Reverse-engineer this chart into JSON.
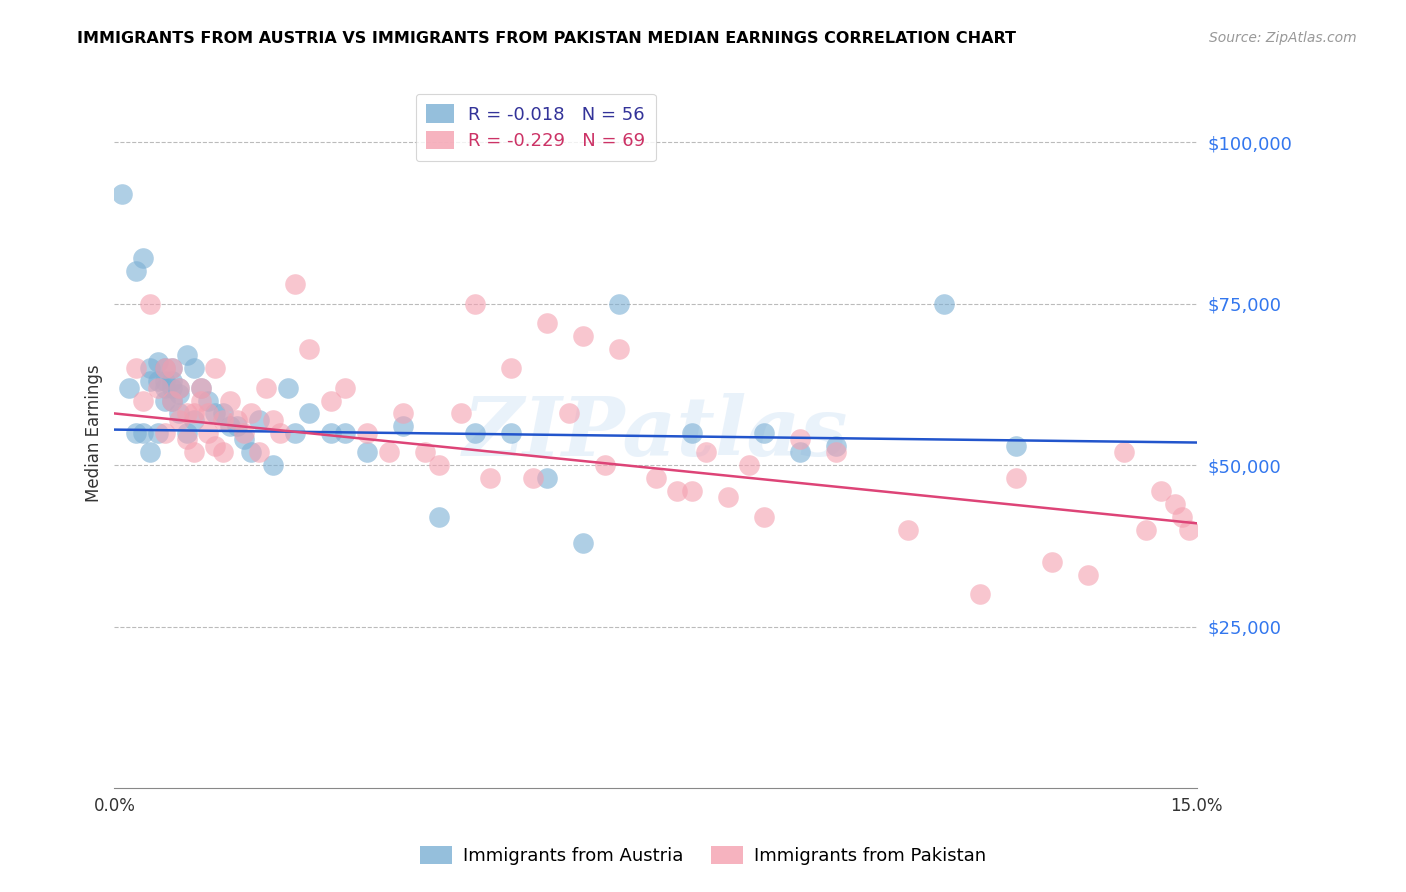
{
  "title": "IMMIGRANTS FROM AUSTRIA VS IMMIGRANTS FROM PAKISTAN MEDIAN EARNINGS CORRELATION CHART",
  "source": "Source: ZipAtlas.com",
  "ylabel": "Median Earnings",
  "xlim": [
    0.0,
    0.15
  ],
  "ylim": [
    0,
    110000
  ],
  "yticks": [
    25000,
    50000,
    75000,
    100000
  ],
  "ytick_labels": [
    "$25,000",
    "$50,000",
    "$75,000",
    "$100,000"
  ],
  "xticks": [
    0.0,
    0.025,
    0.05,
    0.075,
    0.1,
    0.125,
    0.15
  ],
  "xtick_labels": [
    "0.0%",
    "",
    "",
    "",
    "",
    "",
    "15.0%"
  ],
  "austria_R": -0.018,
  "austria_N": 56,
  "pakistan_R": -0.229,
  "pakistan_N": 69,
  "austria_color": "#7BAFD4",
  "pakistan_color": "#F4A0B0",
  "austria_line_color": "#2255CC",
  "pakistan_line_color": "#DD4477",
  "watermark": "ZIPatlas",
  "austria_x": [
    0.001,
    0.002,
    0.003,
    0.003,
    0.004,
    0.004,
    0.005,
    0.005,
    0.005,
    0.006,
    0.006,
    0.006,
    0.007,
    0.007,
    0.007,
    0.007,
    0.008,
    0.008,
    0.008,
    0.008,
    0.009,
    0.009,
    0.009,
    0.01,
    0.01,
    0.011,
    0.011,
    0.012,
    0.013,
    0.014,
    0.015,
    0.016,
    0.017,
    0.018,
    0.019,
    0.02,
    0.022,
    0.024,
    0.025,
    0.027,
    0.03,
    0.032,
    0.035,
    0.04,
    0.045,
    0.05,
    0.055,
    0.06,
    0.065,
    0.07,
    0.08,
    0.09,
    0.095,
    0.1,
    0.115,
    0.125
  ],
  "austria_y": [
    92000,
    62000,
    80000,
    55000,
    82000,
    55000,
    65000,
    63000,
    52000,
    66000,
    63000,
    55000,
    65000,
    63000,
    62000,
    60000,
    65000,
    63000,
    62000,
    60000,
    62000,
    61000,
    58000,
    67000,
    55000,
    65000,
    57000,
    62000,
    60000,
    58000,
    58000,
    56000,
    56000,
    54000,
    52000,
    57000,
    50000,
    62000,
    55000,
    58000,
    55000,
    55000,
    52000,
    56000,
    42000,
    55000,
    55000,
    48000,
    38000,
    75000,
    55000,
    55000,
    52000,
    53000,
    75000,
    53000
  ],
  "pakistan_x": [
    0.003,
    0.004,
    0.005,
    0.006,
    0.007,
    0.007,
    0.008,
    0.008,
    0.009,
    0.009,
    0.01,
    0.01,
    0.011,
    0.011,
    0.012,
    0.012,
    0.013,
    0.013,
    0.014,
    0.014,
    0.015,
    0.015,
    0.016,
    0.017,
    0.018,
    0.019,
    0.02,
    0.021,
    0.022,
    0.023,
    0.025,
    0.027,
    0.03,
    0.032,
    0.035,
    0.038,
    0.04,
    0.043,
    0.045,
    0.048,
    0.05,
    0.052,
    0.055,
    0.058,
    0.06,
    0.063,
    0.065,
    0.068,
    0.07,
    0.075,
    0.078,
    0.08,
    0.082,
    0.085,
    0.088,
    0.09,
    0.095,
    0.1,
    0.11,
    0.12,
    0.125,
    0.13,
    0.135,
    0.14,
    0.143,
    0.145,
    0.147,
    0.148,
    0.149
  ],
  "pakistan_y": [
    65000,
    60000,
    75000,
    62000,
    65000,
    55000,
    65000,
    60000,
    62000,
    57000,
    58000,
    54000,
    58000,
    52000,
    62000,
    60000,
    58000,
    55000,
    65000,
    53000,
    57000,
    52000,
    60000,
    57000,
    55000,
    58000,
    52000,
    62000,
    57000,
    55000,
    78000,
    68000,
    60000,
    62000,
    55000,
    52000,
    58000,
    52000,
    50000,
    58000,
    75000,
    48000,
    65000,
    48000,
    72000,
    58000,
    70000,
    50000,
    68000,
    48000,
    46000,
    46000,
    52000,
    45000,
    50000,
    42000,
    54000,
    52000,
    40000,
    30000,
    48000,
    35000,
    33000,
    52000,
    40000,
    46000,
    44000,
    42000,
    40000
  ],
  "austria_line_x": [
    0.0,
    0.15
  ],
  "austria_line_y": [
    55500,
    53500
  ],
  "pakistan_line_x": [
    0.0,
    0.15
  ],
  "pakistan_line_y": [
    58000,
    41000
  ]
}
